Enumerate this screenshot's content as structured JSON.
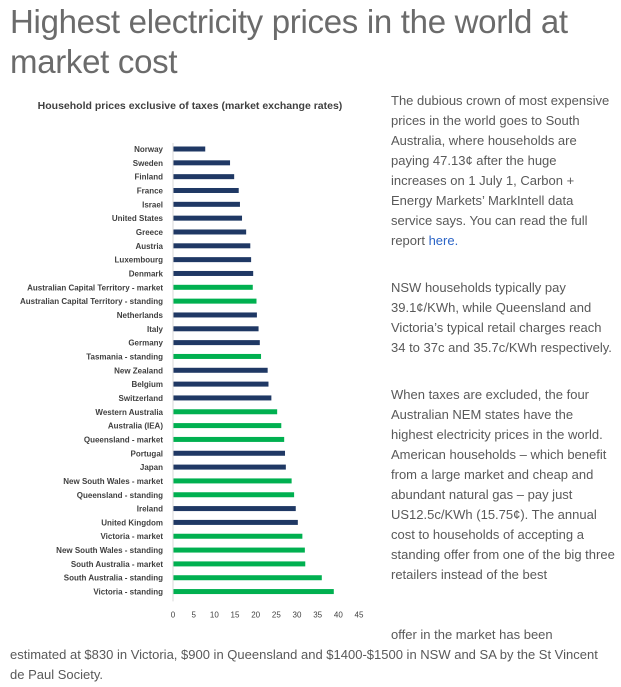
{
  "headline": "Highest electricity prices in the world at market cost",
  "paragraphs": {
    "p1_before_link": "The dubious crown of most expensive prices in the world goes to South Australia, where households are paying 47.13¢ after the huge increases on 1 July 1, Carbon + Energy Markets’ MarkIntell data service says. You can read the full report ",
    "p1_link": "here.",
    "p2": "NSW households typically pay 39.1¢/KWh, while Queensland and Victoria’s typical retail charges reach 34 to 37c and 35.7c/KWh respectively.",
    "p3": "When taxes are excluded, the four Australian NEM states have the highest electricity prices in the world. American households – which benefit from a large market and cheap and abundant natural gas – pay just US12.5c/KWh (15.75¢). The annual cost to households of accepting a standing offer from one of the big three retailers instead of the best",
    "p3_tail_right": "offer in the market has been",
    "p3_tail_full": "estimated at $830 in Victoria, $900 in Queensland and $1400-$1500 in NSW and SA by the St Vincent de Paul Society."
  },
  "colors": {
    "international": "#1f3864",
    "australian": "#00b050"
  },
  "chart_data": {
    "type": "bar",
    "orientation": "horizontal",
    "title": "Household prices exclusive of taxes (market exchange rates)",
    "xlabel": "",
    "ylabel": "",
    "xlim": [
      0,
      45
    ],
    "xticks": [
      0,
      5,
      10,
      15,
      20,
      25,
      30,
      35,
      40,
      45
    ],
    "grid": false,
    "legend": "none",
    "categories": [
      "Norway",
      "Sweden",
      "Finland",
      "France",
      "Israel",
      "United States",
      "Greece",
      "Austria",
      "Luxembourg",
      "Denmark",
      "Australian Capital Territory - market",
      "Australian Capital Territory - standing",
      "Netherlands",
      "Italy",
      "Germany",
      "Tasmania - standing",
      "New Zealand",
      "Belgium",
      "Switzerland",
      "Western Australia",
      "Australia (IEA)",
      "Queensland - market",
      "Portugal",
      "Japan",
      "New South Wales - market",
      "Queensland - standing",
      "Ireland",
      "United Kingdom",
      "Victoria - market",
      "New South Wales - standing",
      "South Australia - market",
      "South Australia - standing",
      "Victoria - standing"
    ],
    "values": [
      7.8,
      13.8,
      14.8,
      15.9,
      16.2,
      16.7,
      17.7,
      18.7,
      18.9,
      19.4,
      19.3,
      20.2,
      20.3,
      20.7,
      21.0,
      21.3,
      22.9,
      23.1,
      23.8,
      25.2,
      26.2,
      26.9,
      27.1,
      27.3,
      28.7,
      29.3,
      29.7,
      30.2,
      31.3,
      31.9,
      32.0,
      36.0,
      38.9
    ],
    "groups": [
      "international",
      "international",
      "international",
      "international",
      "international",
      "international",
      "international",
      "international",
      "international",
      "international",
      "australian",
      "australian",
      "international",
      "international",
      "international",
      "australian",
      "international",
      "international",
      "international",
      "australian",
      "australian",
      "australian",
      "international",
      "international",
      "australian",
      "australian",
      "international",
      "international",
      "australian",
      "australian",
      "australian",
      "australian",
      "australian"
    ]
  }
}
